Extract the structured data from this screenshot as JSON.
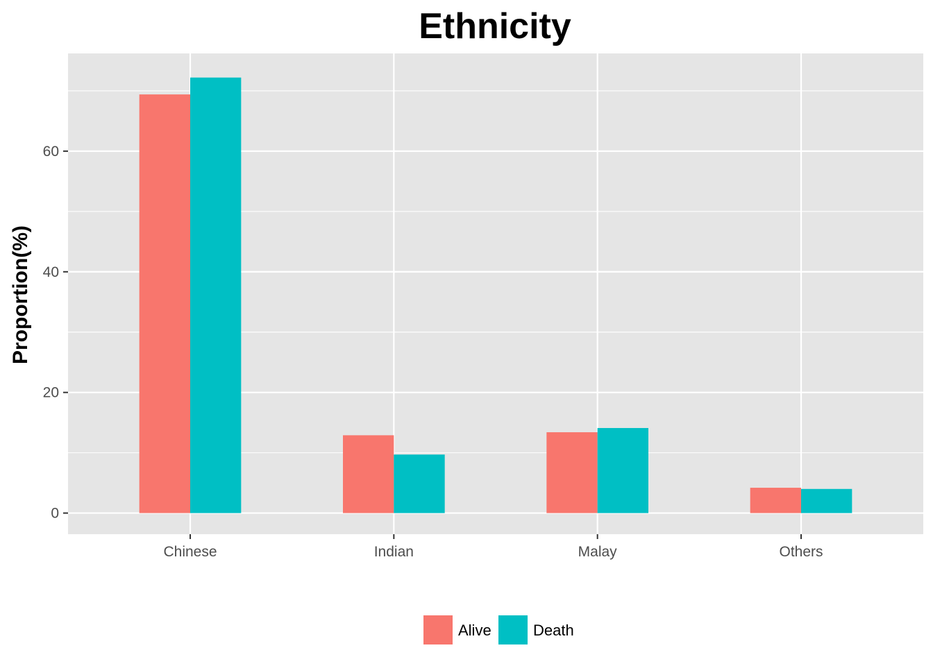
{
  "chart_data": {
    "type": "bar",
    "title": "Ethnicity",
    "xlabel": "",
    "ylabel": "Proportion(%)",
    "categories": [
      "Chinese",
      "Indian",
      "Malay",
      "Others"
    ],
    "series": [
      {
        "name": "Alive",
        "color": "#F8766D",
        "values": [
          69.4,
          12.9,
          13.4,
          4.2
        ]
      },
      {
        "name": "Death",
        "color": "#00BFC4",
        "values": [
          72.2,
          9.7,
          14.1,
          4.0
        ]
      }
    ],
    "ylim": [
      -3.5,
      76.2
    ],
    "yticks": [
      0,
      20,
      40,
      60
    ],
    "y_minor_gridlines": [
      10,
      30,
      50,
      70
    ],
    "grid": true,
    "panel_background": "#E5E5E5",
    "gridline_color": "#FFFFFF",
    "legend_position": "bottom"
  }
}
